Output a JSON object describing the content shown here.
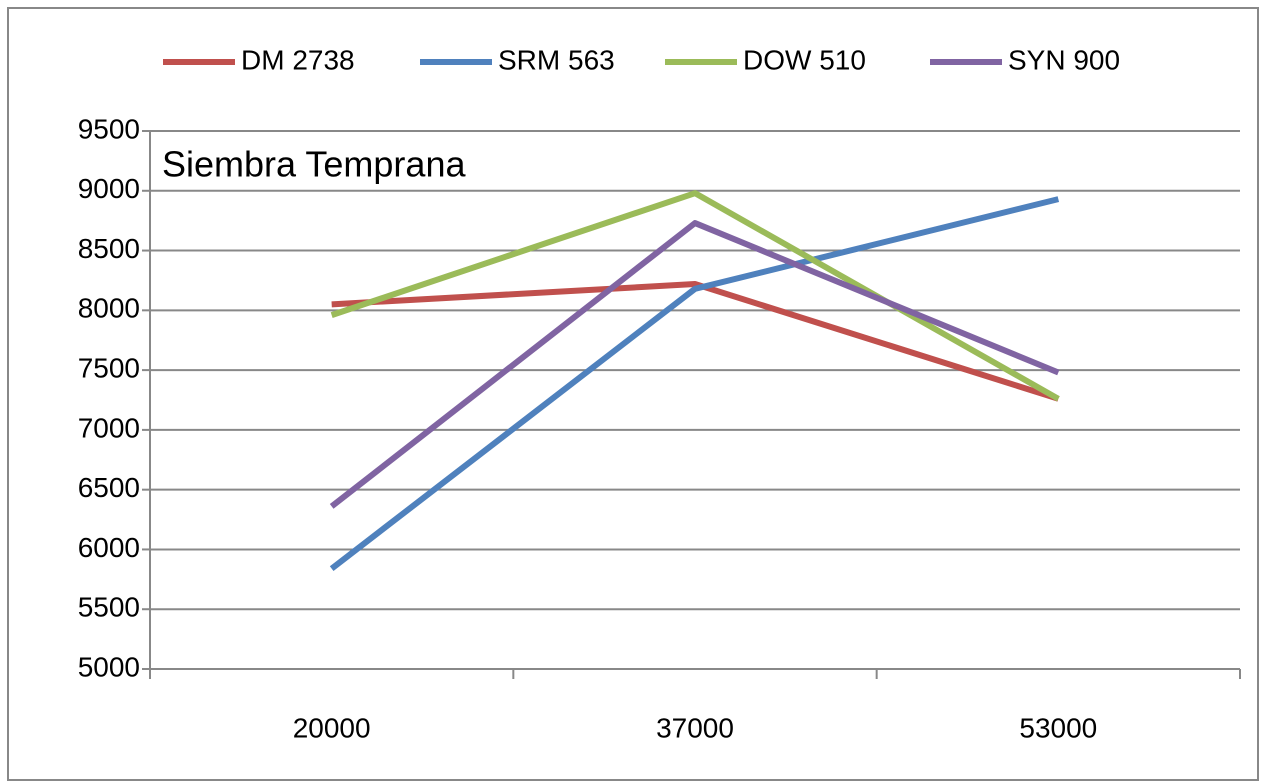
{
  "chart_data": {
    "type": "line",
    "annotation": "Siembra Temprana",
    "categories": [
      "20000",
      "37000",
      "53000"
    ],
    "series": [
      {
        "name": "DM 2738",
        "color": "#c0504d",
        "values": [
          8050,
          8220,
          7260
        ]
      },
      {
        "name": "SRM 563",
        "color": "#4f81bd",
        "values": [
          5840,
          8180,
          8930
        ]
      },
      {
        "name": "DOW 510",
        "color": "#9bbb59",
        "values": [
          7960,
          8980,
          7260
        ]
      },
      {
        "name": "SYN 900",
        "color": "#8064a2",
        "values": [
          6360,
          8730,
          7480
        ]
      }
    ],
    "ylim": [
      5000,
      9500
    ],
    "yticks": [
      5000,
      5500,
      6000,
      6500,
      7000,
      7500,
      8000,
      8500,
      9000,
      9500
    ],
    "grid": true,
    "legend": "top"
  }
}
